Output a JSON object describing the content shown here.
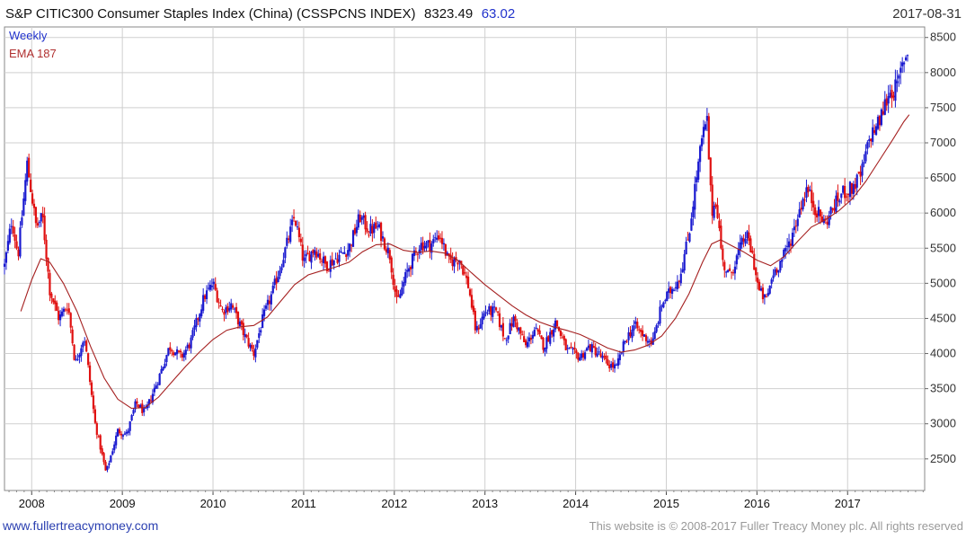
{
  "chart_data": {
    "type": "candlestick",
    "title": "S&P CITIC300 Consumer Staples Index (China) (CSSPCNS INDEX)",
    "last_value": "8323.49",
    "change": "63.02",
    "date": "2017-08-31",
    "legend": [
      "Weekly",
      "EMA 187"
    ],
    "y_ticks": [
      2500,
      3000,
      3500,
      4000,
      4500,
      5000,
      5500,
      6000,
      6500,
      7000,
      7500,
      8000,
      8500
    ],
    "x_ticks": [
      {
        "label": "2008",
        "year": 2008
      },
      {
        "label": "2009",
        "year": 2009
      },
      {
        "label": "2010",
        "year": 2010
      },
      {
        "label": "2011",
        "year": 2011
      },
      {
        "label": "2012",
        "year": 2012
      },
      {
        "label": "2013",
        "year": 2013
      },
      {
        "label": "2014",
        "year": 2014
      },
      {
        "label": "2015",
        "year": 2015
      },
      {
        "label": "2016",
        "year": 2016
      },
      {
        "label": "2017",
        "year": 2017
      }
    ],
    "ylim": [
      2050,
      8650
    ],
    "xlim": [
      2007.7,
      2017.85
    ],
    "price_anchors": [
      {
        "t": 2007.7,
        "v": 5250
      },
      {
        "t": 2007.78,
        "v": 5900
      },
      {
        "t": 2007.85,
        "v": 5400
      },
      {
        "t": 2007.95,
        "v": 6700
      },
      {
        "t": 2008.05,
        "v": 5800
      },
      {
        "t": 2008.12,
        "v": 5950
      },
      {
        "t": 2008.2,
        "v": 4900
      },
      {
        "t": 2008.3,
        "v": 4500
      },
      {
        "t": 2008.4,
        "v": 4700
      },
      {
        "t": 2008.48,
        "v": 3850
      },
      {
        "t": 2008.58,
        "v": 4250
      },
      {
        "t": 2008.7,
        "v": 3000
      },
      {
        "t": 2008.82,
        "v": 2300
      },
      {
        "t": 2008.95,
        "v": 2900
      },
      {
        "t": 2009.05,
        "v": 2850
      },
      {
        "t": 2009.15,
        "v": 3300
      },
      {
        "t": 2009.25,
        "v": 3150
      },
      {
        "t": 2009.4,
        "v": 3650
      },
      {
        "t": 2009.52,
        "v": 4100
      },
      {
        "t": 2009.65,
        "v": 3950
      },
      {
        "t": 2009.75,
        "v": 4150
      },
      {
        "t": 2009.9,
        "v": 4800
      },
      {
        "t": 2010.0,
        "v": 5000
      },
      {
        "t": 2010.1,
        "v": 4600
      },
      {
        "t": 2010.2,
        "v": 4700
      },
      {
        "t": 2010.35,
        "v": 4250
      },
      {
        "t": 2010.45,
        "v": 4000
      },
      {
        "t": 2010.55,
        "v": 4500
      },
      {
        "t": 2010.65,
        "v": 4850
      },
      {
        "t": 2010.78,
        "v": 5400
      },
      {
        "t": 2010.9,
        "v": 5950
      },
      {
        "t": 2011.0,
        "v": 5300
      },
      {
        "t": 2011.12,
        "v": 5500
      },
      {
        "t": 2011.25,
        "v": 5250
      },
      {
        "t": 2011.4,
        "v": 5400
      },
      {
        "t": 2011.5,
        "v": 5500
      },
      {
        "t": 2011.62,
        "v": 5950
      },
      {
        "t": 2011.72,
        "v": 5750
      },
      {
        "t": 2011.82,
        "v": 5800
      },
      {
        "t": 2011.95,
        "v": 5400
      },
      {
        "t": 2012.03,
        "v": 4700
      },
      {
        "t": 2012.15,
        "v": 5200
      },
      {
        "t": 2012.28,
        "v": 5550
      },
      {
        "t": 2012.4,
        "v": 5550
      },
      {
        "t": 2012.5,
        "v": 5700
      },
      {
        "t": 2012.6,
        "v": 5300
      },
      {
        "t": 2012.72,
        "v": 5350
      },
      {
        "t": 2012.82,
        "v": 4950
      },
      {
        "t": 2012.9,
        "v": 4300
      },
      {
        "t": 2013.0,
        "v": 4600
      },
      {
        "t": 2013.12,
        "v": 4600
      },
      {
        "t": 2013.22,
        "v": 4200
      },
      {
        "t": 2013.32,
        "v": 4500
      },
      {
        "t": 2013.45,
        "v": 4100
      },
      {
        "t": 2013.55,
        "v": 4350
      },
      {
        "t": 2013.65,
        "v": 4100
      },
      {
        "t": 2013.78,
        "v": 4450
      },
      {
        "t": 2013.9,
        "v": 4050
      },
      {
        "t": 2014.05,
        "v": 3950
      },
      {
        "t": 2014.15,
        "v": 4100
      },
      {
        "t": 2014.25,
        "v": 4000
      },
      {
        "t": 2014.35,
        "v": 3850
      },
      {
        "t": 2014.45,
        "v": 3800
      },
      {
        "t": 2014.55,
        "v": 4200
      },
      {
        "t": 2014.65,
        "v": 4400
      },
      {
        "t": 2014.75,
        "v": 4250
      },
      {
        "t": 2014.85,
        "v": 4150
      },
      {
        "t": 2014.95,
        "v": 4700
      },
      {
        "t": 2015.05,
        "v": 4900
      },
      {
        "t": 2015.15,
        "v": 5100
      },
      {
        "t": 2015.25,
        "v": 5700
      },
      {
        "t": 2015.32,
        "v": 6400
      },
      {
        "t": 2015.4,
        "v": 7100
      },
      {
        "t": 2015.45,
        "v": 7300
      },
      {
        "t": 2015.5,
        "v": 6000
      },
      {
        "t": 2015.55,
        "v": 6200
      },
      {
        "t": 2015.62,
        "v": 5300
      },
      {
        "t": 2015.7,
        "v": 5100
      },
      {
        "t": 2015.8,
        "v": 5450
      },
      {
        "t": 2015.88,
        "v": 5700
      },
      {
        "t": 2015.95,
        "v": 5400
      },
      {
        "t": 2016.02,
        "v": 4900
      },
      {
        "t": 2016.1,
        "v": 4750
      },
      {
        "t": 2016.18,
        "v": 5150
      },
      {
        "t": 2016.28,
        "v": 5350
      },
      {
        "t": 2016.38,
        "v": 5650
      },
      {
        "t": 2016.48,
        "v": 6100
      },
      {
        "t": 2016.55,
        "v": 6350
      },
      {
        "t": 2016.65,
        "v": 6050
      },
      {
        "t": 2016.75,
        "v": 5850
      },
      {
        "t": 2016.85,
        "v": 6100
      },
      {
        "t": 2016.95,
        "v": 6300
      },
      {
        "t": 2017.05,
        "v": 6350
      },
      {
        "t": 2017.15,
        "v": 6550
      },
      {
        "t": 2017.25,
        "v": 7100
      },
      {
        "t": 2017.35,
        "v": 7300
      },
      {
        "t": 2017.45,
        "v": 7700
      },
      {
        "t": 2017.55,
        "v": 7800
      },
      {
        "t": 2017.62,
        "v": 8200
      },
      {
        "t": 2017.68,
        "v": 8323
      }
    ],
    "ema_points": [
      {
        "t": 2007.88,
        "v": 4600
      },
      {
        "t": 2008.0,
        "v": 5050
      },
      {
        "t": 2008.1,
        "v": 5350
      },
      {
        "t": 2008.2,
        "v": 5300
      },
      {
        "t": 2008.35,
        "v": 5000
      },
      {
        "t": 2008.5,
        "v": 4600
      },
      {
        "t": 2008.65,
        "v": 4100
      },
      {
        "t": 2008.8,
        "v": 3650
      },
      {
        "t": 2008.95,
        "v": 3350
      },
      {
        "t": 2009.1,
        "v": 3220
      },
      {
        "t": 2009.25,
        "v": 3230
      },
      {
        "t": 2009.4,
        "v": 3380
      },
      {
        "t": 2009.55,
        "v": 3600
      },
      {
        "t": 2009.7,
        "v": 3820
      },
      {
        "t": 2009.85,
        "v": 4020
      },
      {
        "t": 2010.0,
        "v": 4200
      },
      {
        "t": 2010.15,
        "v": 4330
      },
      {
        "t": 2010.3,
        "v": 4380
      },
      {
        "t": 2010.45,
        "v": 4400
      },
      {
        "t": 2010.6,
        "v": 4520
      },
      {
        "t": 2010.75,
        "v": 4750
      },
      {
        "t": 2010.9,
        "v": 4980
      },
      {
        "t": 2011.05,
        "v": 5120
      },
      {
        "t": 2011.2,
        "v": 5180
      },
      {
        "t": 2011.35,
        "v": 5230
      },
      {
        "t": 2011.5,
        "v": 5300
      },
      {
        "t": 2011.65,
        "v": 5450
      },
      {
        "t": 2011.8,
        "v": 5550
      },
      {
        "t": 2011.95,
        "v": 5560
      },
      {
        "t": 2012.1,
        "v": 5470
      },
      {
        "t": 2012.25,
        "v": 5440
      },
      {
        "t": 2012.4,
        "v": 5460
      },
      {
        "t": 2012.55,
        "v": 5430
      },
      {
        "t": 2012.7,
        "v": 5330
      },
      {
        "t": 2012.85,
        "v": 5150
      },
      {
        "t": 2013.0,
        "v": 4980
      },
      {
        "t": 2013.15,
        "v": 4830
      },
      {
        "t": 2013.3,
        "v": 4680
      },
      {
        "t": 2013.45,
        "v": 4550
      },
      {
        "t": 2013.6,
        "v": 4450
      },
      {
        "t": 2013.75,
        "v": 4380
      },
      {
        "t": 2013.9,
        "v": 4330
      },
      {
        "t": 2014.05,
        "v": 4270
      },
      {
        "t": 2014.2,
        "v": 4180
      },
      {
        "t": 2014.35,
        "v": 4080
      },
      {
        "t": 2014.5,
        "v": 4020
      },
      {
        "t": 2014.65,
        "v": 4050
      },
      {
        "t": 2014.8,
        "v": 4120
      },
      {
        "t": 2014.95,
        "v": 4250
      },
      {
        "t": 2015.1,
        "v": 4500
      },
      {
        "t": 2015.25,
        "v": 4850
      },
      {
        "t": 2015.4,
        "v": 5300
      },
      {
        "t": 2015.5,
        "v": 5560
      },
      {
        "t": 2015.6,
        "v": 5620
      },
      {
        "t": 2015.7,
        "v": 5550
      },
      {
        "t": 2015.85,
        "v": 5450
      },
      {
        "t": 2016.0,
        "v": 5330
      },
      {
        "t": 2016.15,
        "v": 5250
      },
      {
        "t": 2016.3,
        "v": 5380
      },
      {
        "t": 2016.45,
        "v": 5600
      },
      {
        "t": 2016.6,
        "v": 5800
      },
      {
        "t": 2016.75,
        "v": 5900
      },
      {
        "t": 2016.9,
        "v": 6030
      },
      {
        "t": 2017.05,
        "v": 6200
      },
      {
        "t": 2017.2,
        "v": 6450
      },
      {
        "t": 2017.35,
        "v": 6750
      },
      {
        "t": 2017.5,
        "v": 7050
      },
      {
        "t": 2017.62,
        "v": 7300
      },
      {
        "t": 2017.68,
        "v": 7400
      }
    ]
  },
  "footer": {
    "website": "www.fullertreacymoney.com",
    "copyright": "This website is © 2008-2017 Fuller Treacy Money plc. All rights reserved"
  },
  "colors": {
    "up": "#1a1ad0",
    "down": "#e01010",
    "ema": "#a52020",
    "grid": "#cfcfcf"
  }
}
